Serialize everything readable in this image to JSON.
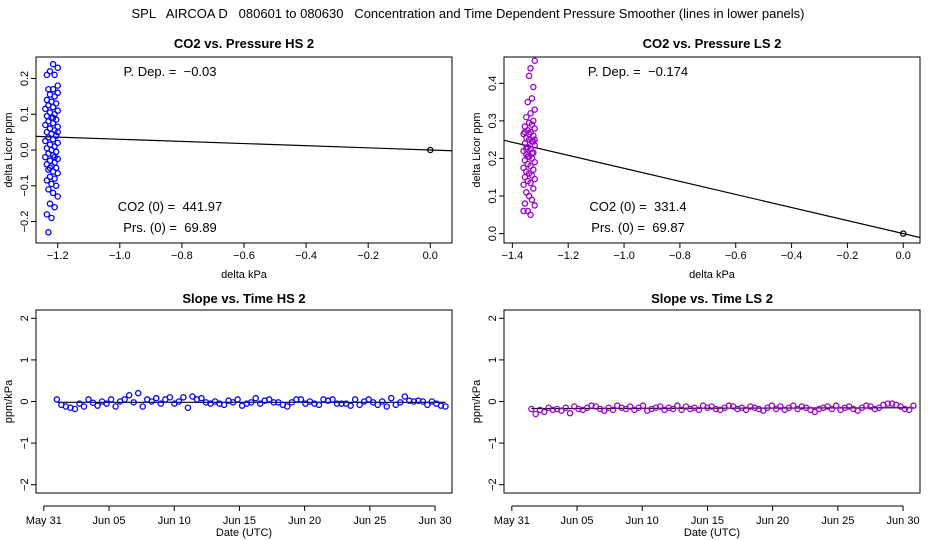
{
  "figure": {
    "title": "SPL   AIRCOA D   080601 to 080630   Concentration and Time Dependent Pressure Smoother (lines in lower panels)"
  },
  "chart_data": [
    {
      "type": "scatter",
      "title": "CO2 vs. Pressure HS 2",
      "xlabel": "delta kPa",
      "ylabel": "delta Licor ppm",
      "xlim": [
        -1.27,
        0.07
      ],
      "ylim": [
        -0.26,
        0.26
      ],
      "xticks": [
        -1.2,
        -1.0,
        -0.8,
        -0.6,
        -0.4,
        -0.2,
        0.0
      ],
      "xticklabels": [
        "−1.2",
        "−1.0",
        "−0.8",
        "−0.6",
        "−0.4",
        "−0.2",
        "0.0"
      ],
      "yticks": [
        -0.2,
        -0.1,
        0.0,
        0.1,
        0.2
      ],
      "yticklabels": [
        "−0.2",
        "−0.1",
        "0.0",
        "0.1",
        "0.2"
      ],
      "point_color": "#0000ff",
      "fit_line": {
        "x": [
          -1.27,
          0.07
        ],
        "y": [
          0.0381,
          -0.0021
        ]
      },
      "annotations": [
        "P. Dep. =  −0.03",
        "CO2 (0) =  441.97",
        "Prs. (0) =  69.89"
      ],
      "points": [
        [
          -1.215,
          0.24
        ],
        [
          -1.2,
          0.23
        ],
        [
          -1.225,
          0.22
        ],
        [
          -1.21,
          0.21
        ],
        [
          -1.235,
          0.21
        ],
        [
          -1.2,
          0.18
        ],
        [
          -1.23,
          0.17
        ],
        [
          -1.215,
          0.17
        ],
        [
          -1.2,
          0.16
        ],
        [
          -1.225,
          0.155
        ],
        [
          -1.21,
          0.15
        ],
        [
          -1.235,
          0.14
        ],
        [
          -1.22,
          0.135
        ],
        [
          -1.205,
          0.13
        ],
        [
          -1.23,
          0.125
        ],
        [
          -1.215,
          0.12
        ],
        [
          -1.24,
          0.115
        ],
        [
          -1.2,
          0.11
        ],
        [
          -1.225,
          0.105
        ],
        [
          -1.21,
          0.1
        ],
        [
          -1.235,
          0.095
        ],
        [
          -1.22,
          0.09
        ],
        [
          -1.205,
          0.085
        ],
        [
          -1.23,
          0.08
        ],
        [
          -1.215,
          0.075
        ],
        [
          -1.24,
          0.07
        ],
        [
          -1.2,
          0.065
        ],
        [
          -1.225,
          0.06
        ],
        [
          -1.21,
          0.055
        ],
        [
          -1.235,
          0.05
        ],
        [
          -1.22,
          0.045
        ],
        [
          -1.205,
          0.04
        ],
        [
          -1.23,
          0.035
        ],
        [
          -1.215,
          0.03
        ],
        [
          -1.24,
          0.025
        ],
        [
          -1.2,
          0.02
        ],
        [
          -1.225,
          0.015
        ],
        [
          -1.21,
          0.01
        ],
        [
          -1.235,
          0.005
        ],
        [
          -1.22,
          0.0
        ],
        [
          -1.205,
          -0.005
        ],
        [
          -1.23,
          -0.01
        ],
        [
          -1.215,
          -0.015
        ],
        [
          -1.24,
          -0.02
        ],
        [
          -1.2,
          -0.025
        ],
        [
          -1.225,
          -0.03
        ],
        [
          -1.21,
          -0.035
        ],
        [
          -1.235,
          -0.04
        ],
        [
          -1.22,
          -0.045
        ],
        [
          -1.205,
          -0.05
        ],
        [
          -1.23,
          -0.055
        ],
        [
          -1.215,
          -0.06
        ],
        [
          -1.2,
          -0.065
        ],
        [
          -1.225,
          -0.075
        ],
        [
          -1.21,
          -0.08
        ],
        [
          -1.235,
          -0.085
        ],
        [
          -1.22,
          -0.095
        ],
        [
          -1.205,
          -0.1
        ],
        [
          -1.23,
          -0.11
        ],
        [
          -1.215,
          -0.12
        ],
        [
          -1.2,
          -0.13
        ],
        [
          -1.225,
          -0.15
        ],
        [
          -1.21,
          -0.16
        ],
        [
          -1.235,
          -0.18
        ],
        [
          -1.22,
          -0.19
        ],
        [
          -1.23,
          -0.23
        ],
        [
          -1.225,
          -0.05
        ],
        [
          -1.215,
          0.09
        ],
        [
          -1.2,
          0.05
        ],
        [
          -1.21,
          -0.02
        ],
        [
          0.0,
          0.0
        ]
      ]
    },
    {
      "type": "scatter",
      "title": "CO2 vs. Pressure LS 2",
      "xlabel": "delta kPa",
      "ylabel": "delta Licor ppm",
      "xlim": [
        -1.43,
        0.06
      ],
      "ylim": [
        -0.025,
        0.47
      ],
      "xticks": [
        -1.4,
        -1.2,
        -1.0,
        -0.8,
        -0.6,
        -0.4,
        -0.2,
        0.0
      ],
      "xticklabels": [
        "−1.4",
        "−1.2",
        "−1.0",
        "−0.8",
        "−0.6",
        "−0.4",
        "−0.2",
        "0.0"
      ],
      "yticks": [
        0.0,
        0.1,
        0.2,
        0.3,
        0.4
      ],
      "yticklabels": [
        "0.0",
        "0.1",
        "0.2",
        "0.3",
        "0.4"
      ],
      "point_color": "#9900cc",
      "fit_line": {
        "x": [
          -1.43,
          0.06
        ],
        "y": [
          0.2484,
          -0.0104
        ]
      },
      "annotations": [
        "P. Dep. =  −0.174",
        "CO2 (0) =  331.4",
        "Prs. (0) =  69.87"
      ],
      "points": [
        [
          -1.32,
          0.46
        ],
        [
          -1.335,
          0.44
        ],
        [
          -1.34,
          0.42
        ],
        [
          -1.325,
          0.39
        ],
        [
          -1.33,
          0.36
        ],
        [
          -1.345,
          0.35
        ],
        [
          -1.32,
          0.33
        ],
        [
          -1.335,
          0.32
        ],
        [
          -1.35,
          0.31
        ],
        [
          -1.325,
          0.3
        ],
        [
          -1.34,
          0.295
        ],
        [
          -1.33,
          0.29
        ],
        [
          -1.355,
          0.285
        ],
        [
          -1.32,
          0.28
        ],
        [
          -1.345,
          0.275
        ],
        [
          -1.335,
          0.27
        ],
        [
          -1.36,
          0.265
        ],
        [
          -1.325,
          0.26
        ],
        [
          -1.35,
          0.255
        ],
        [
          -1.34,
          0.25
        ],
        [
          -1.33,
          0.245
        ],
        [
          -1.355,
          0.24
        ],
        [
          -1.32,
          0.235
        ],
        [
          -1.345,
          0.23
        ],
        [
          -1.335,
          0.225
        ],
        [
          -1.36,
          0.22
        ],
        [
          -1.325,
          0.215
        ],
        [
          -1.35,
          0.21
        ],
        [
          -1.34,
          0.205
        ],
        [
          -1.33,
          0.2
        ],
        [
          -1.355,
          0.195
        ],
        [
          -1.32,
          0.19
        ],
        [
          -1.345,
          0.185
        ],
        [
          -1.335,
          0.18
        ],
        [
          -1.36,
          0.175
        ],
        [
          -1.325,
          0.17
        ],
        [
          -1.35,
          0.165
        ],
        [
          -1.34,
          0.16
        ],
        [
          -1.33,
          0.155
        ],
        [
          -1.355,
          0.15
        ],
        [
          -1.32,
          0.145
        ],
        [
          -1.345,
          0.14
        ],
        [
          -1.335,
          0.135
        ],
        [
          -1.36,
          0.13
        ],
        [
          -1.325,
          0.12
        ],
        [
          -1.35,
          0.11
        ],
        [
          -1.34,
          0.1
        ],
        [
          -1.33,
          0.09
        ],
        [
          -1.355,
          0.08
        ],
        [
          -1.32,
          0.075
        ],
        [
          -1.36,
          0.06
        ],
        [
          -1.345,
          0.06
        ],
        [
          -1.335,
          0.05
        ],
        [
          -1.325,
          0.245
        ],
        [
          -1.34,
          0.265
        ],
        [
          -1.35,
          0.225
        ],
        [
          -1.33,
          0.215
        ],
        [
          -1.345,
          0.205
        ],
        [
          -1.32,
          0.25
        ],
        [
          -1.355,
          0.27
        ],
        [
          0.0,
          0.0
        ]
      ]
    },
    {
      "type": "scatter",
      "title": "Slope vs. Time HS 2",
      "xlabel": "Date (UTC)",
      "ylabel": "ppm/kPa",
      "xlim": [
        -0.6,
        31.3
      ],
      "ylim": [
        -2.2,
        2.2
      ],
      "xticks": [
        0,
        5,
        10,
        15,
        20,
        25,
        30
      ],
      "xticklabels": [
        "May 31",
        "Jun 05",
        "Jun 10",
        "Jun 15",
        "Jun 20",
        "Jun 25",
        "Jun 30"
      ],
      "yticks": [
        -2,
        -1,
        0,
        1,
        2
      ],
      "yticklabels": [
        "−2",
        "−1",
        "0",
        "1",
        "2"
      ],
      "point_color": "#0000ff",
      "smoother": {
        "x": [
          1.0,
          30.8
        ],
        "y": [
          -0.02,
          -0.02
        ]
      },
      "y_values": [
        0.05,
        -0.08,
        -0.12,
        -0.15,
        -0.18,
        -0.05,
        -0.12,
        0.05,
        -0.03,
        -0.1,
        0.0,
        -0.05,
        0.05,
        -0.12,
        0.0,
        0.05,
        0.15,
        -0.02,
        0.2,
        -0.12,
        0.05,
        0.0,
        0.08,
        -0.05,
        0.05,
        0.1,
        -0.05,
        0.0,
        0.1,
        -0.15,
        0.12,
        0.05,
        0.08,
        -0.02,
        -0.05,
        0.0,
        -0.05,
        -0.08,
        0.02,
        -0.02,
        0.05,
        -0.1,
        -0.05,
        -0.02,
        0.08,
        -0.05,
        0.02,
        0.05,
        -0.02,
        -0.02,
        -0.08,
        -0.12,
        -0.02,
        0.05,
        0.05,
        -0.05,
        0.0,
        -0.05,
        -0.08,
        0.05,
        0.02,
        0.05,
        -0.05,
        -0.05,
        -0.05,
        -0.1,
        0.05,
        -0.08,
        0.0,
        0.05,
        -0.02,
        -0.08,
        0.0,
        -0.12,
        0.08,
        -0.08,
        -0.02,
        0.12,
        0.02,
        0.0,
        0.02,
        0.0,
        -0.08,
        0.0,
        -0.05,
        -0.1,
        -0.12
      ]
    },
    {
      "type": "scatter",
      "title": "Slope vs. Time LS 2",
      "xlabel": "Date (UTC)",
      "ylabel": "ppm/kPa",
      "xlim": [
        -0.6,
        31.3
      ],
      "ylim": [
        -2.2,
        2.2
      ],
      "xticks": [
        0,
        5,
        10,
        15,
        20,
        25,
        30
      ],
      "xticklabels": [
        "May 31",
        "Jun 05",
        "Jun 10",
        "Jun 15",
        "Jun 20",
        "Jun 25",
        "Jun 30"
      ],
      "yticks": [
        -2,
        -1,
        0,
        1,
        2
      ],
      "yticklabels": [
        "−2",
        "−1",
        "0",
        "1",
        "2"
      ],
      "point_color": "#9900cc",
      "smoother": {
        "x": [
          1.5,
          30.8
        ],
        "y": [
          -0.17,
          -0.15
        ]
      },
      "y_values": [
        -0.18,
        -0.3,
        -0.2,
        -0.25,
        -0.15,
        -0.2,
        -0.18,
        -0.22,
        -0.15,
        -0.28,
        -0.12,
        -0.18,
        -0.2,
        -0.15,
        -0.1,
        -0.12,
        -0.18,
        -0.22,
        -0.15,
        -0.2,
        -0.1,
        -0.15,
        -0.18,
        -0.12,
        -0.2,
        -0.15,
        -0.1,
        -0.22,
        -0.18,
        -0.15,
        -0.12,
        -0.2,
        -0.15,
        -0.18,
        -0.1,
        -0.2,
        -0.12,
        -0.18,
        -0.15,
        -0.2,
        -0.1,
        -0.15,
        -0.12,
        -0.18,
        -0.2,
        -0.15,
        -0.1,
        -0.12,
        -0.18,
        -0.15,
        -0.2,
        -0.12,
        -0.15,
        -0.18,
        -0.22,
        -0.15,
        -0.1,
        -0.18,
        -0.12,
        -0.2,
        -0.15,
        -0.1,
        -0.18,
        -0.12,
        -0.15,
        -0.2,
        -0.25,
        -0.18,
        -0.15,
        -0.12,
        -0.18,
        -0.1,
        -0.2,
        -0.15,
        -0.12,
        -0.18,
        -0.22,
        -0.15,
        -0.1,
        -0.12,
        -0.18,
        -0.15,
        -0.08,
        -0.05,
        -0.05,
        -0.08,
        -0.12,
        -0.18,
        -0.2,
        -0.1
      ]
    }
  ]
}
